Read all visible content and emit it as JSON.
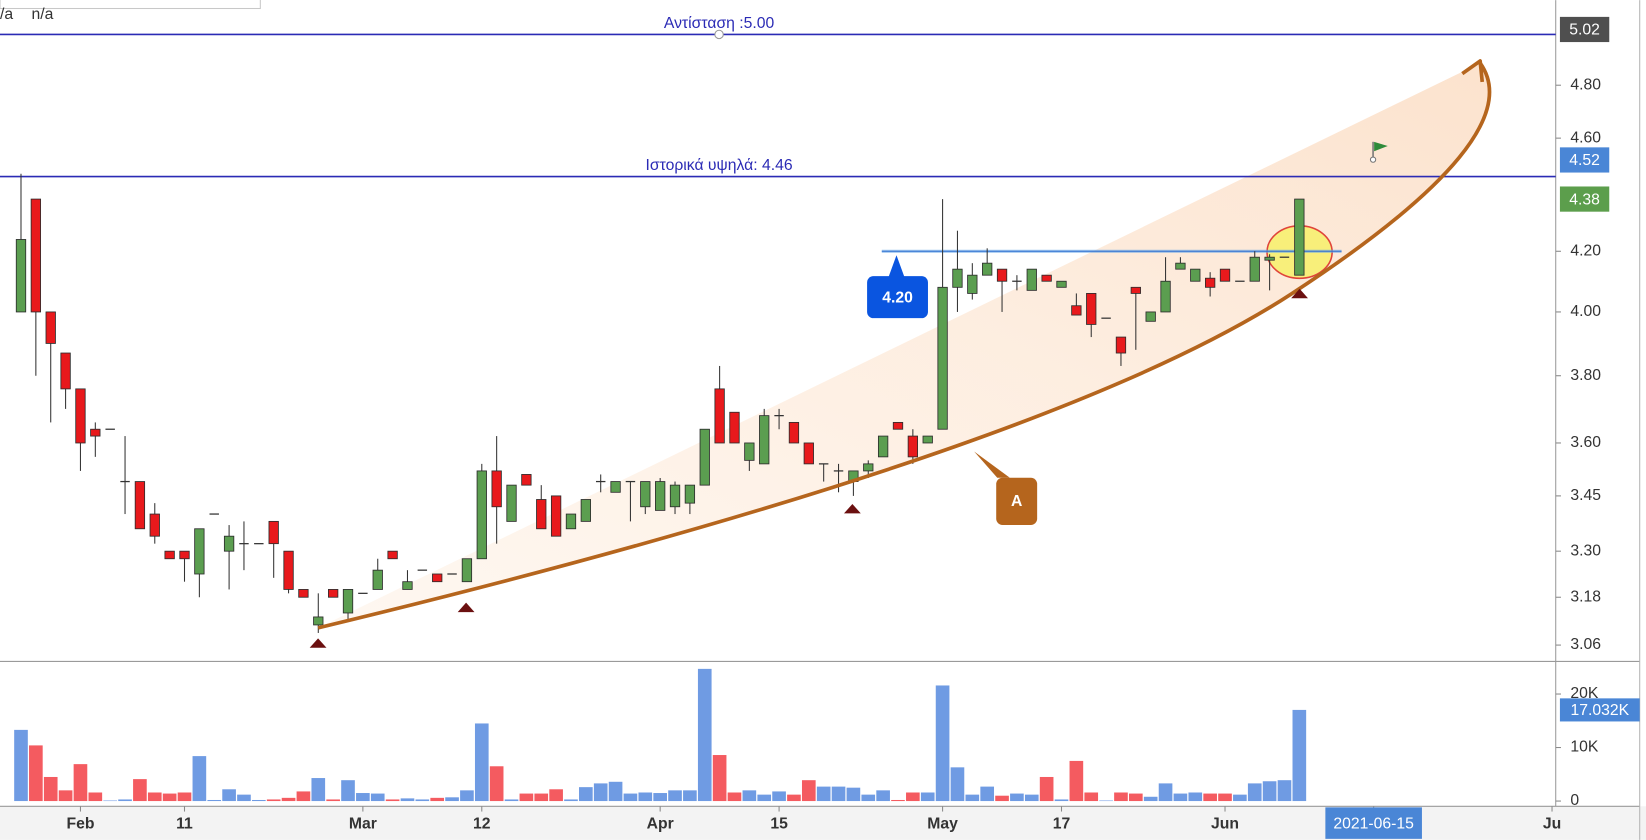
{
  "chart_data": {
    "type": "candlestick",
    "legend_fragments": [
      "/a",
      "n/a"
    ],
    "categories": [
      null,
      null,
      null,
      null,
      "Feb",
      null,
      null,
      null,
      null,
      null,
      null,
      "11",
      null,
      null,
      null,
      null,
      null,
      null,
      null,
      null,
      null,
      null,
      null,
      "Mar",
      null,
      null,
      null,
      null,
      null,
      null,
      null,
      "12",
      null,
      null,
      null,
      null,
      null,
      null,
      null,
      null,
      null,
      null,
      null,
      "Apr",
      null,
      null,
      null,
      null,
      null,
      null,
      null,
      "15",
      null,
      null,
      null,
      null,
      null,
      null,
      null,
      null,
      null,
      null,
      "May",
      null,
      null,
      null,
      null,
      null,
      null,
      null,
      "17",
      null,
      null,
      null,
      null,
      null,
      null,
      null,
      null,
      null,
      null,
      "Jun",
      null,
      null,
      null,
      null,
      null,
      null,
      null,
      null,
      null,
      "2021-06-15",
      null,
      null,
      null,
      null,
      null,
      null,
      null,
      null,
      null,
      null,
      null,
      "Ju"
    ],
    "open": [
      4.0,
      4.38,
      4.0,
      3.87,
      3.76,
      3.64,
      3.64,
      3.49,
      3.49,
      3.4,
      3.3,
      3.3,
      3.24,
      3.4,
      3.3,
      3.32,
      3.32,
      3.38,
      3.3,
      3.2,
      3.11,
      3.2,
      3.14,
      3.19,
      3.2,
      3.3,
      3.2,
      3.25,
      3.24,
      3.24,
      3.22,
      3.28,
      3.52,
      3.38,
      3.51,
      3.44,
      3.45,
      3.36,
      3.38,
      3.49,
      3.46,
      3.49,
      3.42,
      3.41,
      3.42,
      3.43,
      3.48,
      3.76,
      3.69,
      3.55,
      3.54,
      3.68,
      3.66,
      3.6,
      3.54,
      3.52,
      3.49,
      3.52,
      3.56,
      3.66,
      3.62,
      3.6,
      3.64,
      4.08,
      4.06,
      4.12,
      4.14,
      4.1,
      4.07,
      4.12,
      4.08,
      4.02,
      4.06,
      3.98,
      3.92,
      4.08,
      3.97,
      4.0,
      4.14,
      4.1,
      4.11,
      4.14,
      4.1,
      4.1,
      4.17,
      4.18,
      4.12,
      null,
      null,
      null,
      null,
      null,
      null,
      null,
      null,
      null,
      null,
      null,
      null,
      null,
      null,
      null,
      null,
      null
    ],
    "high": [
      4.47,
      4.38,
      4.0,
      3.87,
      3.76,
      3.66,
      3.64,
      3.62,
      3.49,
      3.43,
      3.3,
      3.3,
      3.36,
      3.4,
      3.37,
      3.38,
      3.32,
      3.38,
      3.3,
      3.2,
      3.19,
      3.2,
      3.2,
      3.19,
      3.28,
      3.3,
      3.25,
      3.25,
      3.24,
      3.24,
      3.28,
      3.54,
      3.62,
      3.48,
      3.51,
      3.48,
      3.45,
      3.4,
      3.44,
      3.51,
      3.49,
      3.49,
      3.49,
      3.5,
      3.49,
      3.48,
      3.64,
      3.83,
      3.69,
      3.6,
      3.7,
      3.7,
      3.66,
      3.6,
      3.54,
      3.54,
      3.52,
      3.55,
      3.62,
      3.66,
      3.64,
      3.62,
      4.38,
      4.27,
      4.16,
      4.21,
      4.14,
      4.12,
      4.14,
      4.12,
      4.1,
      4.06,
      4.06,
      3.98,
      3.92,
      4.08,
      4.0,
      4.18,
      4.18,
      4.14,
      4.13,
      4.14,
      4.1,
      4.2,
      4.19,
      4.18,
      4.38,
      null,
      null,
      null,
      null,
      null,
      null,
      null,
      null,
      null,
      null,
      null,
      null,
      null,
      null,
      null,
      null,
      null
    ],
    "low": [
      4.0,
      3.8,
      3.66,
      3.7,
      3.52,
      3.56,
      3.64,
      3.4,
      3.36,
      3.32,
      3.28,
      3.22,
      3.18,
      3.4,
      3.2,
      3.25,
      3.32,
      3.23,
      3.19,
      3.18,
      3.09,
      3.18,
      3.12,
      3.19,
      3.2,
      3.28,
      3.2,
      3.25,
      3.22,
      3.24,
      3.22,
      3.28,
      3.32,
      3.38,
      3.48,
      3.36,
      3.34,
      3.36,
      3.38,
      3.46,
      3.46,
      3.38,
      3.4,
      3.41,
      3.4,
      3.4,
      3.48,
      3.6,
      3.6,
      3.52,
      3.54,
      3.64,
      3.6,
      3.54,
      3.49,
      3.46,
      3.45,
      3.5,
      3.56,
      3.64,
      3.54,
      3.6,
      3.64,
      4.0,
      4.04,
      4.12,
      4.0,
      4.07,
      4.07,
      4.1,
      4.08,
      3.99,
      3.92,
      3.98,
      3.83,
      3.88,
      3.97,
      4.0,
      4.14,
      4.1,
      4.05,
      4.1,
      4.1,
      4.1,
      4.07,
      4.18,
      4.12,
      null,
      null,
      null,
      null,
      null,
      null,
      null,
      null,
      null,
      null,
      null,
      null,
      null,
      null,
      null,
      null,
      null
    ],
    "close": [
      4.24,
      4.0,
      3.9,
      3.76,
      3.6,
      3.62,
      3.64,
      3.49,
      3.36,
      3.34,
      3.28,
      3.28,
      3.36,
      3.4,
      3.34,
      3.32,
      3.32,
      3.32,
      3.2,
      3.18,
      3.13,
      3.18,
      3.2,
      3.19,
      3.25,
      3.28,
      3.22,
      3.25,
      3.22,
      3.24,
      3.28,
      3.52,
      3.42,
      3.48,
      3.48,
      3.36,
      3.34,
      3.4,
      3.44,
      3.49,
      3.49,
      3.49,
      3.49,
      3.49,
      3.48,
      3.48,
      3.64,
      3.6,
      3.6,
      3.6,
      3.68,
      3.68,
      3.6,
      3.54,
      3.54,
      3.52,
      3.52,
      3.54,
      3.62,
      3.64,
      3.56,
      3.62,
      4.08,
      4.14,
      4.12,
      4.16,
      4.1,
      4.1,
      4.14,
      4.1,
      4.1,
      3.99,
      3.96,
      3.98,
      3.87,
      4.06,
      4.0,
      4.1,
      4.16,
      4.14,
      4.08,
      4.1,
      4.1,
      4.18,
      4.18,
      4.18,
      4.38,
      null,
      null,
      null,
      null,
      null,
      null,
      null,
      null,
      null,
      null,
      null,
      null,
      null,
      null,
      null,
      null,
      null
    ],
    "volume": [
      13300,
      10400,
      4500,
      2000,
      6900,
      1600,
      100,
      300,
      4100,
      1600,
      1400,
      1600,
      8400,
      200,
      2200,
      1200,
      200,
      300,
      600,
      1800,
      4300,
      300,
      3900,
      1500,
      1400,
      300,
      500,
      300,
      600,
      700,
      2000,
      14500,
      6500,
      300,
      1400,
      1400,
      2200,
      300,
      2600,
      3300,
      3600,
      1400,
      1600,
      1500,
      2000,
      2000,
      24700,
      8600,
      1600,
      2000,
      1200,
      1800,
      1200,
      3900,
      2700,
      2700,
      2500,
      1200,
      2000,
      200,
      1600,
      1600,
      21600,
      6300,
      1200,
      2700,
      1000,
      1400,
      1200,
      4500,
      300,
      7500,
      1600,
      100,
      1600,
      1400,
      800,
      3300,
      1400,
      1600,
      1400,
      1400,
      1200,
      3300,
      3700,
      3900,
      17032,
      null,
      null,
      null,
      null,
      null,
      null,
      null,
      null,
      null,
      null,
      null,
      null,
      null,
      null,
      null,
      null,
      null
    ],
    "up_color": "#5b9e50",
    "down_color": "#e8191c",
    "volume_up_color": "#6f9be3",
    "volume_down_color": "#f45b60",
    "log_scale": true,
    "ylim": [
      3.02,
      5.14
    ],
    "yticks": [
      3.06,
      3.18,
      {
        "value": 3.3,
        "label": "3.30"
      },
      3.45,
      {
        "value": 3.6,
        "label": "3.60"
      },
      {
        "value": 3.8,
        "label": "3.80"
      },
      {
        "value": 4,
        "label": "4.00"
      },
      {
        "value": 4.2,
        "label": "4.20"
      },
      {
        "value": 4.6,
        "label": "4.60"
      },
      {
        "value": 4.8,
        "label": "4.80"
      }
    ],
    "volume_ylim": [
      0,
      25500
    ],
    "volume_yticks": [
      0,
      {
        "value": 10000,
        "label": "10K"
      },
      {
        "value": 20000,
        "label": "20K"
      }
    ],
    "volume_last": {
      "value": 17032,
      "label": "17.032K",
      "color": "#4a86d6"
    },
    "price_labels": [
      {
        "value": 5.02,
        "color": "#4f4f4f"
      },
      {
        "value": 4.52,
        "color": "#4a86d6"
      },
      {
        "value": 4.38,
        "color": "#5c9e4c"
      }
    ],
    "lines": [
      {
        "label": "Αντίσταση :5.00",
        "value": 5,
        "color": "#2b2bb5"
      },
      {
        "label": "Ιστορικά υψηλά: 4.46",
        "value": 4.46,
        "color": "#2b2bb5"
      }
    ],
    "level": {
      "value": 4.2,
      "label": "4.20",
      "color": "#6aa6e6"
    },
    "callout": "A"
  }
}
